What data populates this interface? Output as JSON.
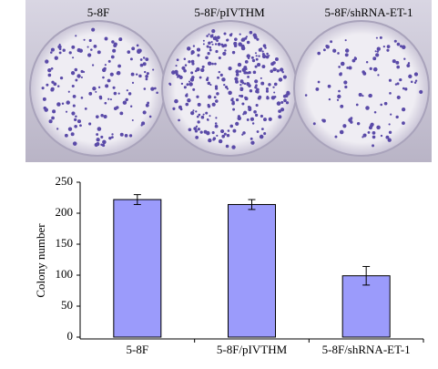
{
  "photo": {
    "labels": [
      "5-8F",
      "5-8F/pIVTHM",
      "5-8F/shRNA-ET-1"
    ]
  },
  "chart_data": {
    "type": "bar",
    "ylabel": "Colony number",
    "categories": [
      "5-8F",
      "5-8F/pIVTHM",
      "5-8F/shRNA-ET-1"
    ],
    "values": [
      222,
      214,
      99
    ],
    "errors": [
      8,
      8,
      15
    ],
    "color": "#9b9bfb",
    "ylim": [
      0,
      250
    ],
    "yticks": [
      0,
      50,
      100,
      150,
      200,
      250
    ]
  }
}
